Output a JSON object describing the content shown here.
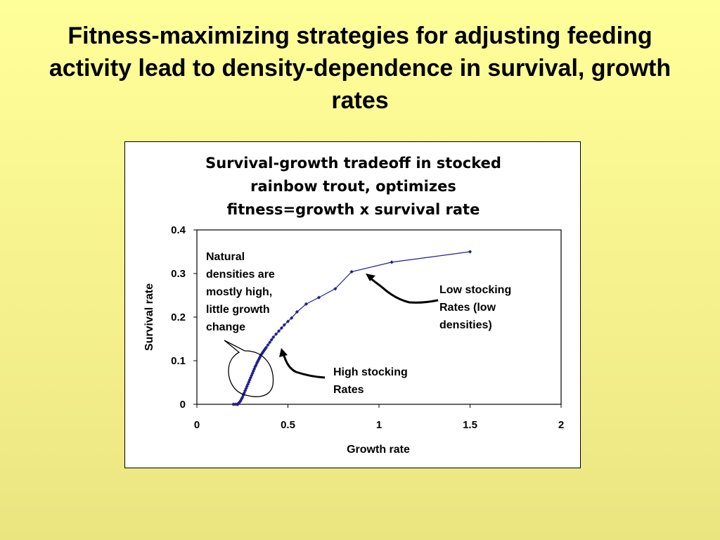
{
  "slide": {
    "title": "Fitness-maximizing strategies for adjusting feeding activity lead to density-dependence in survival, growth rates"
  },
  "colors": {
    "background": "#ffff99",
    "series": "#1f1f8f",
    "axes": "#000000"
  },
  "chart_data": {
    "type": "line",
    "title": "Survival-growth tradeoff in stocked rainbow trout, optimizes fitness=growth x survival rate",
    "title_lines": [
      "Survival-growth tradeoff in stocked",
      "rainbow trout, optimizes",
      "fitness=growth x survival rate"
    ],
    "xlabel": "Growth rate",
    "ylabel": "Survival rate",
    "xlim": [
      0,
      2
    ],
    "ylim": [
      0,
      0.4
    ],
    "xticks": [
      0,
      0.5,
      1,
      1.5,
      2
    ],
    "xtick_labels": [
      "0",
      "0.5",
      "1",
      "1.5",
      "2"
    ],
    "yticks": [
      0,
      0.1,
      0.2,
      0.3,
      0.4
    ],
    "ytick_labels": [
      "0",
      "0.1",
      "0.2",
      "0.3",
      "0.4"
    ],
    "grid": false,
    "legend": "none",
    "marker": "diamond",
    "series": [
      {
        "x": [
          0.2,
          0.21,
          0.22,
          0.225,
          0.23,
          0.235,
          0.24,
          0.245,
          0.25,
          0.255,
          0.26,
          0.265,
          0.27,
          0.275,
          0.28,
          0.285,
          0.29,
          0.295,
          0.3,
          0.305,
          0.31,
          0.315,
          0.32,
          0.325,
          0.33,
          0.335,
          0.34,
          0.345,
          0.35,
          0.355,
          0.36,
          0.365,
          0.37,
          0.375,
          0.38,
          0.39,
          0.4,
          0.41,
          0.42,
          0.435,
          0.45,
          0.465,
          0.48,
          0.5,
          0.52,
          0.55,
          0.6,
          0.67,
          0.76,
          0.85,
          1.07,
          1.5
        ],
        "y": [
          0.0,
          0.0,
          0.0,
          0.0,
          0.003,
          0.005,
          0.008,
          0.012,
          0.016,
          0.021,
          0.026,
          0.031,
          0.036,
          0.041,
          0.046,
          0.051,
          0.056,
          0.061,
          0.066,
          0.071,
          0.076,
          0.081,
          0.086,
          0.09,
          0.095,
          0.099,
          0.103,
          0.107,
          0.111,
          0.115,
          0.118,
          0.121,
          0.124,
          0.127,
          0.13,
          0.136,
          0.142,
          0.148,
          0.154,
          0.161,
          0.168,
          0.175,
          0.182,
          0.19,
          0.198,
          0.212,
          0.23,
          0.245,
          0.265,
          0.304,
          0.326,
          0.35
        ]
      }
    ],
    "annotations": [
      {
        "id": "natural",
        "lines": [
          "Natural",
          "densities are",
          "mostly high,",
          "little growth",
          "change"
        ]
      },
      {
        "id": "low",
        "lines": [
          "Low stocking",
          "Rates (low",
          "densities)"
        ]
      },
      {
        "id": "high",
        "lines": [
          "High stocking",
          "Rates"
        ]
      }
    ]
  }
}
